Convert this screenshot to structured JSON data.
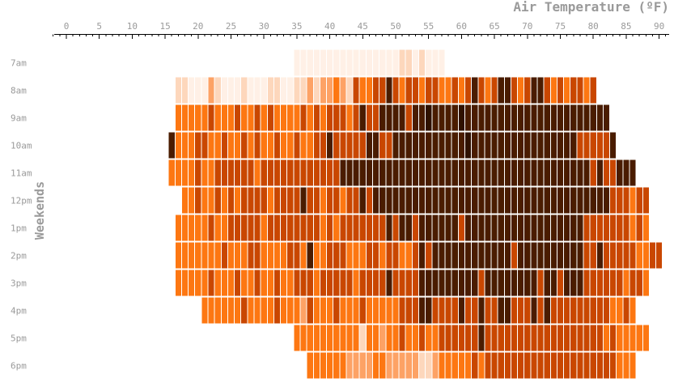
{
  "chart_data": {
    "type": "heatmap",
    "xlabel": "Air Temperature (ºF)",
    "ylabel": "Weekends",
    "x_ticks": [
      0,
      5,
      10,
      15,
      20,
      25,
      30,
      35,
      40,
      45,
      50,
      55,
      60,
      65,
      70,
      75,
      80,
      85,
      90
    ],
    "xlim": [
      -2,
      91
    ],
    "bin_width_f": 1,
    "rows": [
      {
        "label": "7am",
        "x_start": 35,
        "values": [
          1,
          1,
          1,
          1,
          1,
          1,
          1,
          1,
          1,
          1,
          1,
          1,
          1,
          1,
          1,
          1,
          2,
          2,
          1,
          2,
          1,
          1,
          1
        ]
      },
      {
        "label": "8am",
        "x_start": 17,
        "values": [
          2,
          2,
          1,
          1,
          1,
          3,
          2,
          1,
          1,
          1,
          2,
          1,
          1,
          1,
          2,
          2,
          1,
          1,
          2,
          2,
          3,
          2,
          3,
          3,
          4,
          3,
          2,
          5,
          4,
          4,
          5,
          5,
          6,
          5,
          4,
          5,
          5,
          4,
          5,
          5,
          4,
          4,
          5,
          4,
          5,
          6,
          5,
          4,
          5,
          6,
          6,
          5,
          4,
          5,
          6,
          6,
          5,
          4,
          5,
          4,
          5,
          5,
          4,
          5
        ]
      },
      {
        "label": "9am",
        "x_start": 17,
        "values": [
          4,
          4,
          4,
          4,
          4,
          5,
          4,
          4,
          4,
          5,
          4,
          4,
          5,
          4,
          5,
          4,
          4,
          4,
          4,
          5,
          4,
          5,
          4,
          5,
          5,
          5,
          4,
          5,
          6,
          5,
          5,
          6,
          6,
          6,
          6,
          5,
          6,
          6,
          7,
          6,
          6,
          6,
          6,
          7,
          6,
          6,
          6,
          6,
          6,
          6,
          6,
          6,
          6,
          6,
          6,
          6,
          6,
          6,
          6,
          6,
          6,
          6,
          6,
          6,
          6,
          6
        ]
      },
      {
        "label": "10am",
        "x_start": 16,
        "values": [
          6,
          4,
          4,
          4,
          5,
          5,
          4,
          4,
          5,
          4,
          4,
          5,
          4,
          5,
          4,
          4,
          5,
          4,
          4,
          5,
          4,
          4,
          5,
          5,
          6,
          5,
          5,
          5,
          5,
          5,
          6,
          6,
          5,
          5,
          6,
          6,
          6,
          6,
          6,
          6,
          6,
          6,
          6,
          6,
          6,
          7,
          6,
          6,
          6,
          6,
          6,
          6,
          6,
          6,
          6,
          6,
          6,
          6,
          6,
          6,
          6,
          6,
          5,
          5,
          5,
          5,
          5,
          6
        ]
      },
      {
        "label": "11am",
        "x_start": 16,
        "values": [
          4,
          4,
          4,
          4,
          5,
          4,
          4,
          5,
          5,
          5,
          5,
          5,
          5,
          4,
          5,
          5,
          5,
          5,
          5,
          5,
          5,
          5,
          5,
          5,
          5,
          5,
          6,
          6,
          6,
          6,
          6,
          6,
          6,
          6,
          6,
          6,
          6,
          6,
          6,
          6,
          6,
          6,
          6,
          6,
          6,
          6,
          6,
          6,
          6,
          6,
          6,
          6,
          6,
          6,
          6,
          6,
          6,
          6,
          6,
          6,
          6,
          6,
          6,
          6,
          5,
          6,
          5,
          5,
          6,
          6,
          6
        ]
      },
      {
        "label": "12pm",
        "x_start": 18,
        "values": [
          4,
          4,
          5,
          4,
          4,
          5,
          4,
          5,
          4,
          5,
          5,
          5,
          5,
          4,
          5,
          5,
          5,
          5,
          6,
          5,
          5,
          4,
          5,
          5,
          4,
          5,
          5,
          6,
          5,
          6,
          6,
          6,
          6,
          6,
          6,
          6,
          6,
          6,
          6,
          6,
          6,
          6,
          6,
          6,
          6,
          6,
          6,
          6,
          6,
          6,
          6,
          6,
          6,
          6,
          6,
          6,
          6,
          6,
          6,
          6,
          6,
          6,
          6,
          6,
          6,
          5,
          5,
          5,
          4,
          5,
          5
        ]
      },
      {
        "label": "1pm",
        "x_start": 17,
        "values": [
          4,
          4,
          4,
          4,
          4,
          5,
          4,
          4,
          5,
          5,
          5,
          5,
          5,
          4,
          5,
          5,
          5,
          5,
          5,
          5,
          5,
          5,
          4,
          5,
          4,
          5,
          5,
          5,
          5,
          5,
          5,
          5,
          6,
          5,
          6,
          6,
          5,
          6,
          6,
          6,
          6,
          6,
          6,
          5,
          6,
          6,
          6,
          6,
          6,
          6,
          6,
          6,
          6,
          6,
          6,
          6,
          6,
          6,
          6,
          6,
          6,
          6,
          5,
          5,
          5,
          5,
          5,
          5,
          5,
          4,
          5,
          4
        ]
      },
      {
        "label": "2pm",
        "x_start": 17,
        "values": [
          4,
          4,
          4,
          4,
          4,
          4,
          4,
          5,
          4,
          4,
          4,
          5,
          5,
          4,
          4,
          4,
          4,
          5,
          5,
          4,
          6,
          4,
          4,
          5,
          5,
          5,
          4,
          4,
          4,
          5,
          5,
          4,
          5,
          5,
          4,
          4,
          5,
          6,
          5,
          6,
          6,
          6,
          6,
          6,
          6,
          6,
          6,
          6,
          6,
          6,
          6,
          5,
          6,
          6,
          6,
          6,
          6,
          6,
          6,
          6,
          6,
          6,
          5,
          5,
          6,
          5,
          5,
          5,
          5,
          5,
          4,
          4,
          5,
          5
        ]
      },
      {
        "label": "3pm",
        "x_start": 17,
        "values": [
          4,
          4,
          4,
          4,
          4,
          5,
          4,
          4,
          4,
          5,
          4,
          4,
          5,
          4,
          4,
          5,
          4,
          4,
          5,
          5,
          5,
          4,
          5,
          5,
          5,
          5,
          5,
          4,
          5,
          5,
          5,
          5,
          6,
          5,
          5,
          5,
          5,
          6,
          6,
          6,
          6,
          6,
          6,
          6,
          6,
          6,
          5,
          6,
          6,
          6,
          6,
          6,
          6,
          6,
          6,
          5,
          6,
          6,
          5,
          6,
          6,
          6,
          5,
          5,
          5,
          5,
          5,
          5,
          4,
          5,
          5,
          4
        ]
      },
      {
        "label": "4pm",
        "x_start": 21,
        "values": [
          4,
          4,
          4,
          4,
          4,
          4,
          5,
          4,
          4,
          4,
          4,
          5,
          4,
          4,
          4,
          3,
          5,
          4,
          4,
          4,
          5,
          4,
          4,
          4,
          5,
          4,
          4,
          4,
          4,
          4,
          5,
          5,
          5,
          6,
          6,
          5,
          5,
          5,
          5,
          6,
          5,
          5,
          6,
          5,
          5,
          6,
          6,
          5,
          5,
          5,
          6,
          5,
          6,
          5,
          5,
          5,
          5,
          5,
          5,
          5,
          5,
          5,
          4,
          4,
          5,
          4
        ]
      },
      {
        "label": "5pm",
        "x_start": 35,
        "values": [
          4,
          4,
          4,
          4,
          4,
          4,
          4,
          4,
          4,
          4,
          2,
          4,
          4,
          3,
          4,
          4,
          5,
          4,
          4,
          5,
          4,
          4,
          5,
          5,
          5,
          5,
          5,
          5,
          6,
          5,
          5,
          5,
          5,
          5,
          5,
          5,
          5,
          5,
          5,
          5,
          5,
          5,
          5,
          5,
          5,
          5,
          5,
          4,
          5,
          4,
          4,
          4,
          4,
          4
        ]
      },
      {
        "label": "6pm",
        "x_start": 37,
        "values": [
          4,
          4,
          4,
          4,
          4,
          4,
          3,
          3,
          3,
          3,
          4,
          4,
          3,
          3,
          3,
          3,
          3,
          2,
          2,
          3,
          4,
          4,
          4,
          4,
          4,
          5,
          4,
          5,
          5,
          5,
          5,
          5,
          5,
          5,
          5,
          5,
          5,
          5,
          5,
          5,
          5,
          5,
          5,
          5,
          5,
          5,
          5,
          4,
          4,
          4
        ]
      }
    ],
    "colors": [
      "#ffffff",
      "#fff0e6",
      "#fdd7bc",
      "#fda265",
      "#fd7712",
      "#c94700",
      "#4a1c00",
      "#2f1100"
    ]
  }
}
